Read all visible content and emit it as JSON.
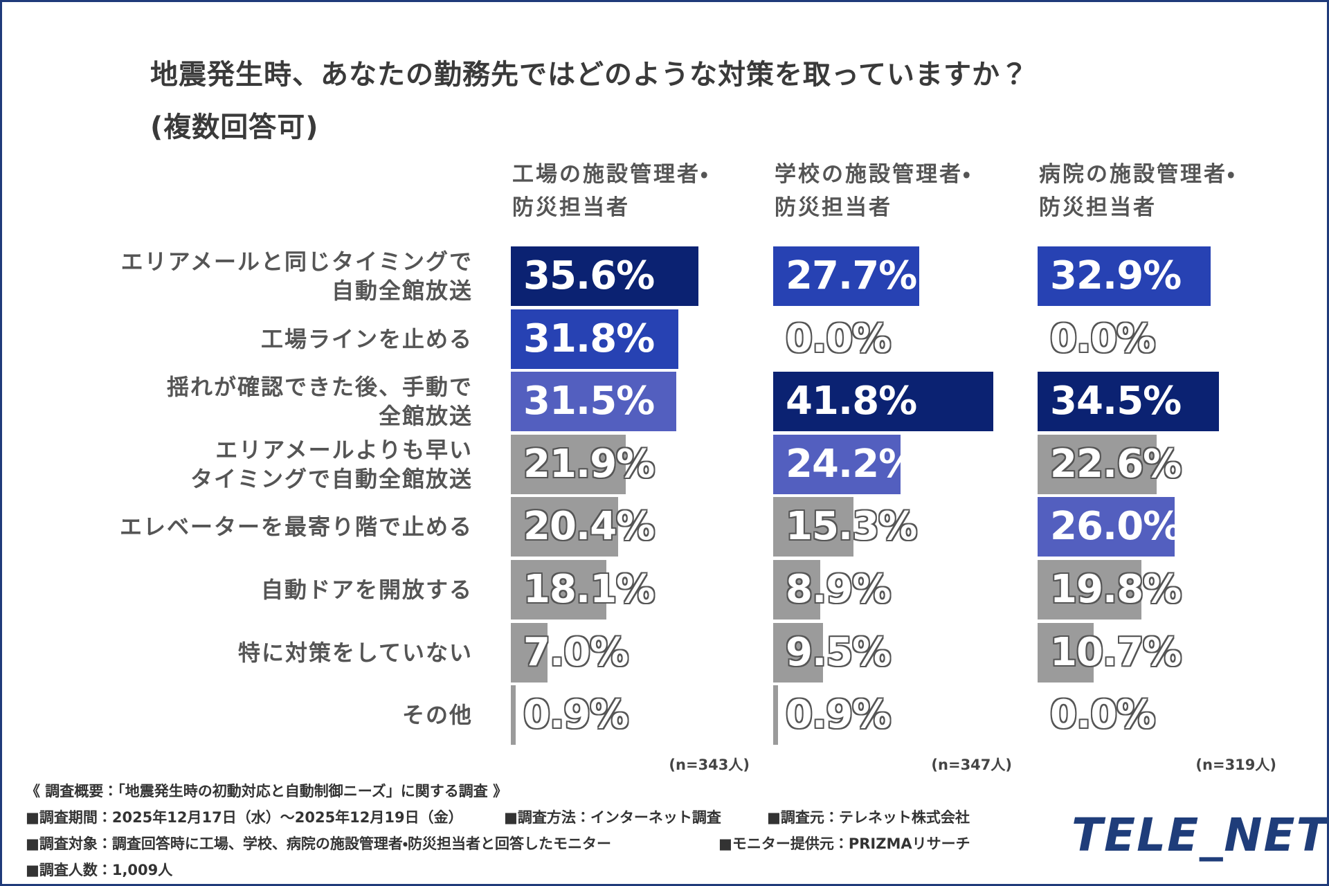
{
  "chart_data": {
    "type": "bar",
    "title": "地震発生時、あなたの勤務先ではどのような対策を取っていますか？",
    "subtitle": "(複数回答可)",
    "categories": [
      "エリアメールと同じタイミングで\n自動全館放送",
      "工場ラインを止める",
      "揺れが確認できた後、手動で\n全館放送",
      "エリアメールよりも早い\nタイミングで自動全館放送",
      "エレベーターを最寄り階で止める",
      "自動ドアを開放する",
      "特に対策をしていない",
      "その他"
    ],
    "series": [
      {
        "name": "工場の施設管理者・\n防災担当者",
        "note": "(n=343人)",
        "values": [
          35.6,
          31.8,
          31.5,
          21.9,
          20.4,
          18.1,
          7.0,
          0.9
        ],
        "value_labels": [
          "35.6%",
          "31.8%",
          "31.5%",
          "21.9%",
          "20.4%",
          "18.1%",
          "7.0%",
          "0.9%"
        ],
        "colors": [
          "#0b2272",
          "#2742b3",
          "#535fbf",
          "#9b9b9b",
          "#9b9b9b",
          "#9b9b9b",
          "#9b9b9b",
          "#9b9b9b"
        ]
      },
      {
        "name": "学校の施設管理者・\n防災担当者",
        "note": "(n=347人)",
        "values": [
          27.7,
          0.0,
          41.8,
          24.2,
          15.3,
          8.9,
          9.5,
          0.9
        ],
        "value_labels": [
          "27.7%",
          "0.0%",
          "41.8%",
          "24.2%",
          "15.3%",
          "8.9%",
          "9.5%",
          "0.9%"
        ],
        "colors": [
          "#2742b3",
          "#9b9b9b",
          "#0b2272",
          "#535fbf",
          "#9b9b9b",
          "#9b9b9b",
          "#9b9b9b",
          "#9b9b9b"
        ]
      },
      {
        "name": "病院の施設管理者・\n防災担当者",
        "note": "(n=319人)",
        "values": [
          32.9,
          0.0,
          34.5,
          22.6,
          26.0,
          19.8,
          10.7,
          0.0
        ],
        "value_labels": [
          "32.9%",
          "0.0%",
          "34.5%",
          "22.6%",
          "26.0%",
          "19.8%",
          "10.7%",
          "0.0%"
        ],
        "colors": [
          "#2742b3",
          "#9b9b9b",
          "#0b2272",
          "#9b9b9b",
          "#535fbf",
          "#9b9b9b",
          "#9b9b9b",
          "#9b9b9b"
        ]
      }
    ]
  },
  "footer": {
    "heading": "《 調査概要：「地震発生時の初動対応と自動制御ニーズ」に関する調査 》",
    "lines": [
      [
        "■調査期間：2025年12月17日（水）～2025年12月19日（金）",
        "■調査方法：インターネット調査",
        "■調査元：テレネット株式会社"
      ],
      [
        "■調査対象：調査回答時に工場、学校、病院の施設管理者・防災担当者と回答したモニター",
        "■モニター提供元：PRIZMAリサーチ"
      ],
      [
        "■調査人数：1,009人"
      ]
    ],
    "logo": "TELE_NET"
  }
}
